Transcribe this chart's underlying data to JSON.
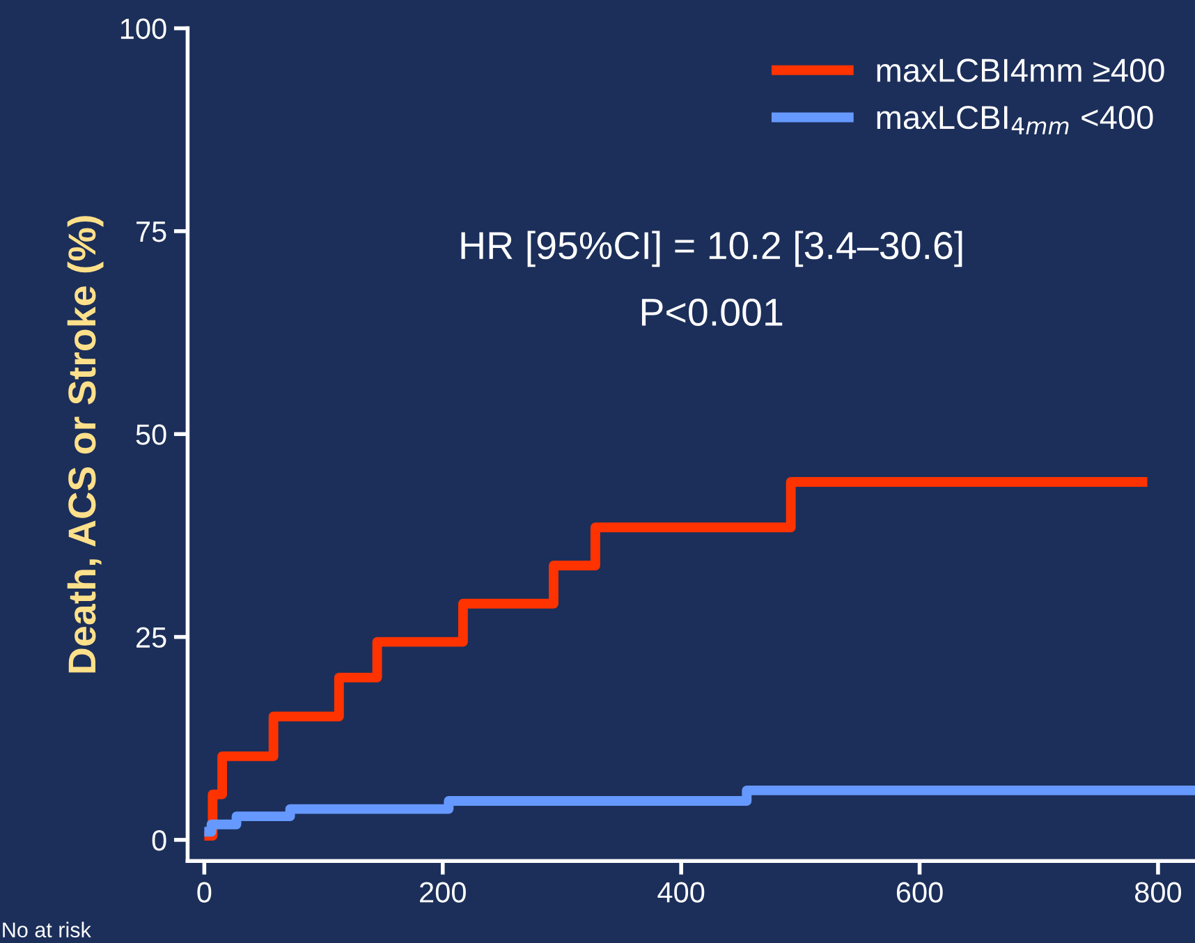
{
  "chart_data": {
    "type": "step",
    "ylabel": "Death, ACS or Stroke (%)",
    "xlim": [
      -14,
      831
    ],
    "ylim": [
      -2.6,
      100
    ],
    "xticks": [
      0,
      200,
      400,
      600,
      800
    ],
    "yticks": [
      0,
      25,
      50,
      75,
      100
    ],
    "legend": "top right",
    "grid": false,
    "line_style": "solid",
    "marker": "none",
    "series": [
      {
        "name": "maxLCBI4mm ≥400",
        "color": "#ff3300",
        "x": [
          0,
          7,
          15,
          58,
          113,
          145,
          217,
          293,
          328,
          492,
          791
        ],
        "values": [
          0.5,
          5.6,
          10.3,
          15.2,
          20.0,
          24.4,
          29.1,
          33.8,
          38.5,
          44.1,
          44.1
        ]
      },
      {
        "name": "maxLCBI$_{4mm}$ <400",
        "color": "#6699ff",
        "x": [
          0,
          6,
          27,
          72,
          205,
          455,
          831
        ],
        "values": [
          1.0,
          1.9,
          2.9,
          3.8,
          4.8,
          6.1,
          6.1
        ]
      }
    ],
    "annotations": [
      "HR [95%CI] = 10.2 [3.4–30.6]",
      "P<0.001",
      "No at risk"
    ]
  }
}
